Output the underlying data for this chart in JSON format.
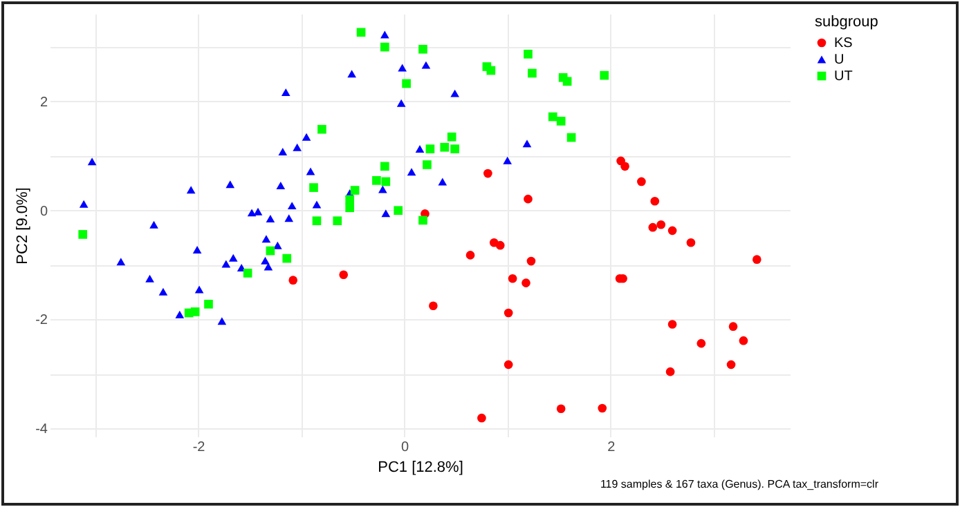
{
  "chart_data": {
    "type": "scatter",
    "xlabel": "PC1 [12.8%]",
    "ylabel": "PC2 [9.0%]",
    "legend_title": "subgroup",
    "legend": "right",
    "grid": true,
    "annotations": [
      "119 samples & 167 taxa (Genus). PCA tax_transform=clr"
    ],
    "xlim": [
      -3.44,
      3.74
    ],
    "ylim": [
      -4.15,
      3.61
    ],
    "xticks": [
      {
        "value": -3,
        "label": null
      },
      -2,
      {
        "value": -1,
        "label": null
      },
      0,
      {
        "value": 1,
        "label": null
      },
      2,
      {
        "value": 3,
        "label": null
      }
    ],
    "yticks": [
      {
        "value": -4,
        "label": "-4"
      },
      {
        "value": -3,
        "label": null
      },
      -2,
      {
        "value": -1,
        "label": null
      },
      0,
      {
        "value": 1,
        "label": null
      },
      2,
      {
        "value": 3,
        "label": null
      }
    ],
    "series": [
      {
        "name": "KS",
        "color": "#ff0000",
        "marker": "circle",
        "x": [
          0.2,
          0.81,
          1.2,
          2.1,
          2.14,
          2.3,
          2.43,
          2.41,
          2.49,
          2.6,
          2.78,
          0.87,
          0.93,
          0.64,
          1.23,
          1.05,
          1.18,
          2.09,
          2.12,
          0.28,
          1.01,
          2.6,
          3.19,
          3.29,
          2.88,
          1.01,
          2.58,
          3.17,
          1.52,
          1.92,
          0.75,
          3.42,
          -1.08,
          -0.59
        ],
        "values": [
          -0.06,
          0.68,
          0.21,
          0.91,
          0.81,
          0.53,
          0.17,
          -0.31,
          -0.26,
          -0.37,
          -0.59,
          -0.59,
          -0.64,
          -0.82,
          -0.93,
          -1.25,
          -1.33,
          -1.25,
          -1.25,
          -1.75,
          -1.88,
          -2.09,
          -2.13,
          -2.39,
          -2.44,
          -2.83,
          -2.96,
          -2.83,
          -3.64,
          -3.63,
          -3.81,
          -0.9,
          -1.28,
          -1.18
        ]
      },
      {
        "name": "U",
        "color": "#0000ff",
        "marker": "triangle",
        "x": [
          -3.11,
          -3.03,
          -2.43,
          -2.07,
          -1.69,
          -1.48,
          -1.42,
          -1.3,
          -1.2,
          -1.15,
          -1.18,
          -1.12,
          -1.09,
          -1.04,
          -0.95,
          -0.91,
          -0.85,
          -0.53,
          -0.51,
          -0.21,
          -0.18,
          -0.19,
          -0.02,
          0.21,
          0.49,
          -0.03,
          0.15,
          0.07,
          0.37,
          1.0,
          1.19,
          -2.75,
          -2.47,
          -2.34,
          -2.18,
          -2.01,
          -1.99,
          -1.77,
          -1.73,
          -1.66,
          -1.58,
          -1.34,
          -1.35,
          -1.32,
          -1.23
        ],
        "values": [
          0.12,
          0.9,
          -0.26,
          0.38,
          0.48,
          -0.04,
          -0.02,
          -0.15,
          0.46,
          2.17,
          1.08,
          -0.14,
          0.09,
          1.16,
          1.35,
          0.72,
          0.11,
          0.32,
          2.51,
          0.39,
          -0.05,
          3.23,
          2.62,
          2.67,
          2.15,
          1.97,
          1.13,
          0.71,
          0.53,
          0.92,
          1.23,
          -0.94,
          -1.25,
          -1.49,
          -1.91,
          -0.72,
          -1.45,
          -2.03,
          -0.98,
          -0.87,
          -1.05,
          -0.52,
          -0.92,
          -1.03,
          -0.64
        ]
      },
      {
        "name": "UT",
        "color": "#00ff00",
        "marker": "square",
        "x": [
          -0.42,
          -0.19,
          -0.8,
          -0.88,
          -0.53,
          -0.53,
          -0.48,
          -0.85,
          -0.65,
          -0.27,
          -0.19,
          -0.18,
          -3.12,
          -0.06,
          0.18,
          0.02,
          0.8,
          0.84,
          1.2,
          1.24,
          1.54,
          1.58,
          1.94,
          1.44,
          1.52,
          1.62,
          0.46,
          0.39,
          0.49,
          0.25,
          0.22,
          0.18,
          -2.09,
          -2.03,
          -1.9,
          -1.52,
          -1.3,
          -1.14
        ],
        "values": [
          3.27,
          3.0,
          1.49,
          0.42,
          0.2,
          0.05,
          0.37,
          -0.19,
          -0.19,
          0.55,
          0.81,
          0.53,
          -0.44,
          0.0,
          2.96,
          2.33,
          2.64,
          2.57,
          2.87,
          2.52,
          2.44,
          2.37,
          2.48,
          1.72,
          1.64,
          1.34,
          1.35,
          1.16,
          1.13,
          1.13,
          0.84,
          -0.18,
          -1.88,
          -1.86,
          -1.72,
          -1.15,
          -0.74,
          -0.88
        ]
      }
    ]
  }
}
